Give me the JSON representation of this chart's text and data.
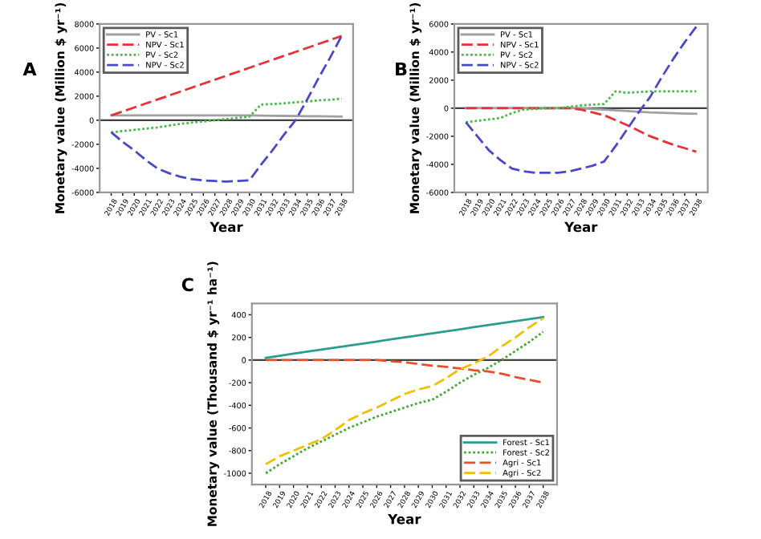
{
  "chart_data": [
    {
      "type": "line",
      "annotations": [
        "A"
      ],
      "xlabel": "Year",
      "ylabel": "Monetary value (Million $ yr⁻¹)",
      "categories": [
        "2018",
        "2019",
        "2020",
        "2021",
        "2022",
        "2023",
        "2024",
        "2025",
        "2026",
        "2027",
        "2028",
        "2029",
        "2030",
        "2031",
        "2032",
        "2033",
        "2034",
        "2035",
        "2036",
        "2037",
        "2038"
      ],
      "ylim": [
        -6000,
        8000
      ],
      "yticks": [
        -6000,
        -4000,
        -2000,
        0,
        2000,
        4000,
        6000,
        8000
      ],
      "grid": false,
      "legend": "top left",
      "ref_lines": [
        {
          "axis": "y",
          "value": 0,
          "color": "#404040"
        }
      ],
      "series": [
        {
          "name": "PV - Sc1",
          "color": "#a0a0a0",
          "line_style": "solid",
          "values": [
            400,
            400,
            400,
            400,
            400,
            400,
            400,
            400,
            400,
            400,
            400,
            400,
            400,
            380,
            370,
            360,
            350,
            340,
            330,
            320,
            300
          ]
        },
        {
          "name": "NPV - Sc1",
          "color": "#e8303a",
          "line_style": "dashed",
          "values": [
            400,
            730,
            1060,
            1390,
            1720,
            2050,
            2380,
            2710,
            3040,
            3370,
            3700,
            4030,
            4360,
            4690,
            5020,
            5350,
            5680,
            6010,
            6340,
            6670,
            7000
          ]
        },
        {
          "name": "PV - Sc2",
          "color": "#44bb44",
          "line_style": "dotted",
          "values": [
            -1000,
            -900,
            -800,
            -700,
            -600,
            -450,
            -300,
            -200,
            -100,
            0,
            100,
            200,
            300,
            1300,
            1350,
            1400,
            1500,
            1550,
            1650,
            1700,
            1800
          ]
        },
        {
          "name": "NPV - Sc2",
          "color": "#4848c8",
          "line_style": "dashed",
          "values": [
            -1000,
            -1800,
            -2500,
            -3300,
            -4000,
            -4400,
            -4700,
            -4900,
            -5000,
            -5050,
            -5100,
            -5050,
            -5000,
            -3700,
            -2500,
            -1200,
            0,
            1700,
            3500,
            5200,
            7000
          ]
        }
      ]
    },
    {
      "type": "line",
      "annotations": [
        "B"
      ],
      "xlabel": "Year",
      "ylabel": "Monetary value (Million $ yr⁻¹)",
      "categories": [
        "2018",
        "2019",
        "2020",
        "2021",
        "2022",
        "2023",
        "2024",
        "2025",
        "2026",
        "2027",
        "2028",
        "2029",
        "2030",
        "2031",
        "2032",
        "2033",
        "2034",
        "2035",
        "2036",
        "2037",
        "2038"
      ],
      "ylim": [
        -6000,
        6000
      ],
      "yticks": [
        -6000,
        -4000,
        -2000,
        0,
        2000,
        4000,
        6000
      ],
      "grid": false,
      "legend": "top left",
      "ref_lines": [
        {
          "axis": "y",
          "value": 0,
          "color": "#404040"
        }
      ],
      "series": [
        {
          "name": "PV - Sc1",
          "color": "#a0a0a0",
          "line_style": "solid",
          "values": [
            0,
            0,
            0,
            0,
            0,
            0,
            0,
            0,
            0,
            0,
            0,
            -50,
            -100,
            -150,
            -200,
            -250,
            -300,
            -330,
            -350,
            -380,
            -400
          ]
        },
        {
          "name": "NPV - Sc1",
          "color": "#e8303a",
          "line_style": "dashed",
          "values": [
            0,
            0,
            0,
            0,
            0,
            0,
            0,
            0,
            0,
            0,
            -100,
            -300,
            -500,
            -850,
            -1200,
            -1600,
            -2000,
            -2300,
            -2600,
            -2850,
            -3100
          ]
        },
        {
          "name": "PV - Sc2",
          "color": "#44bb44",
          "line_style": "dotted",
          "values": [
            -1000,
            -900,
            -800,
            -700,
            -350,
            -100,
            -50,
            0,
            0,
            100,
            200,
            250,
            300,
            1200,
            1100,
            1150,
            1200,
            1200,
            1200,
            1200,
            1200
          ]
        },
        {
          "name": "NPV - Sc2",
          "color": "#4848c8",
          "line_style": "dashed",
          "values": [
            -1000,
            -2000,
            -3000,
            -3700,
            -4300,
            -4500,
            -4600,
            -4600,
            -4600,
            -4500,
            -4300,
            -4100,
            -3800,
            -2700,
            -1500,
            -300,
            800,
            2200,
            3500,
            4700,
            5800
          ]
        }
      ]
    },
    {
      "type": "line",
      "annotations": [
        "C"
      ],
      "xlabel": "Year",
      "ylabel": "Monetary value (Thousand $ yr⁻¹ ha⁻¹)",
      "categories": [
        "2018",
        "2019",
        "2020",
        "2021",
        "2022",
        "2023",
        "2024",
        "2025",
        "2026",
        "2027",
        "2028",
        "2029",
        "2030",
        "2031",
        "2032",
        "2033",
        "2034",
        "2035",
        "2036",
        "2037",
        "2038"
      ],
      "ylim": [
        -1100,
        500
      ],
      "yticks": [
        -1000,
        -800,
        -600,
        -400,
        -200,
        0,
        200,
        400
      ],
      "grid": false,
      "legend": "bottom right",
      "ref_lines": [
        {
          "axis": "y",
          "value": 0,
          "color": "#404040"
        }
      ],
      "series": [
        {
          "name": "Forest - Sc1",
          "color": "#2a9d8f",
          "line_style": "solid",
          "values": [
            20,
            38,
            56,
            74,
            92,
            110,
            128,
            146,
            164,
            182,
            200,
            218,
            236,
            254,
            272,
            290,
            308,
            326,
            344,
            362,
            380
          ]
        },
        {
          "name": "Forest - Sc2",
          "color": "#44aa33",
          "line_style": "dotted",
          "values": [
            -1000,
            -920,
            -850,
            -780,
            -720,
            -660,
            -600,
            -550,
            -500,
            -460,
            -420,
            -380,
            -350,
            -280,
            -200,
            -130,
            -70,
            0,
            80,
            160,
            250
          ]
        },
        {
          "name": "Agri - Sc1",
          "color": "#e8502a",
          "line_style": "dashed",
          "values": [
            0,
            0,
            0,
            0,
            0,
            0,
            0,
            0,
            0,
            -10,
            -20,
            -35,
            -50,
            -60,
            -75,
            -90,
            -100,
            -120,
            -150,
            -175,
            -200
          ]
        },
        {
          "name": "Agri - Sc2",
          "color": "#f0c000",
          "line_style": "dashed",
          "values": [
            -920,
            -850,
            -800,
            -750,
            -700,
            -620,
            -530,
            -470,
            -420,
            -360,
            -300,
            -260,
            -230,
            -160,
            -80,
            -30,
            30,
            120,
            200,
            290,
            370
          ]
        }
      ]
    }
  ]
}
